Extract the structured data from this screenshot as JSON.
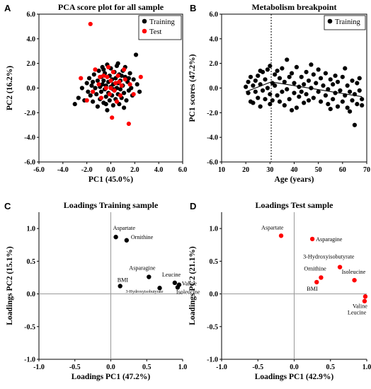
{
  "chart_data": [
    {
      "panel": "A",
      "type": "scatter",
      "title": "PCA score plot for all sample",
      "xlabel": "PC1 (45.0%)",
      "ylabel": "PC2 (16.2%)",
      "xlim": [
        -6.0,
        6.0
      ],
      "ylim": [
        -6.0,
        6.0
      ],
      "xticks": [
        "-6.0",
        "-4.0",
        "-2.0",
        "0.0",
        "2.0",
        "4.0",
        "6.0"
      ],
      "yticks": [
        "-6.0",
        "-4.0",
        "-2.0",
        "0.0",
        "2.0",
        "4.0",
        "6.0"
      ],
      "legend_position": "top-right",
      "series": [
        {
          "name": "Training",
          "color": "#000000",
          "points": [
            [
              -3.0,
              -1.3
            ],
            [
              -2.7,
              -0.8
            ],
            [
              -2.2,
              -1.0
            ],
            [
              -2.0,
              0.4
            ],
            [
              -1.9,
              -0.3
            ],
            [
              -1.8,
              0.8
            ],
            [
              -1.7,
              -0.6
            ],
            [
              -1.6,
              0.2
            ],
            [
              -1.5,
              -1.1
            ],
            [
              -1.4,
              1.1
            ],
            [
              -1.3,
              0.0
            ],
            [
              -1.2,
              -0.5
            ],
            [
              -1.1,
              0.6
            ],
            [
              -1.1,
              -1.5
            ],
            [
              -1.0,
              1.4
            ],
            [
              -0.9,
              0.1
            ],
            [
              -0.9,
              -0.9
            ],
            [
              -0.8,
              0.9
            ],
            [
              -0.8,
              -0.3
            ],
            [
              -0.7,
              1.7
            ],
            [
              -0.7,
              0.3
            ],
            [
              -0.6,
              -1.2
            ],
            [
              -0.6,
              0.6
            ],
            [
              -0.5,
              -0.1
            ],
            [
              -0.5,
              1.2
            ],
            [
              -0.4,
              -0.7
            ],
            [
              -0.4,
              0.2
            ],
            [
              -0.3,
              1.9
            ],
            [
              -0.3,
              -1.8
            ],
            [
              -0.2,
              0.5
            ],
            [
              -0.2,
              -0.4
            ],
            [
              -0.1,
              1.0
            ],
            [
              -0.1,
              -1.0
            ],
            [
              0.0,
              0.1
            ],
            [
              0.0,
              1.6
            ],
            [
              0.1,
              -0.6
            ],
            [
              0.1,
              0.7
            ],
            [
              0.2,
              -1.4
            ],
            [
              0.2,
              0.3
            ],
            [
              0.3,
              1.3
            ],
            [
              0.3,
              -0.2
            ],
            [
              0.4,
              0.8
            ],
            [
              0.4,
              -0.9
            ],
            [
              0.5,
              0.0
            ],
            [
              0.5,
              1.8
            ],
            [
              0.6,
              -0.5
            ],
            [
              0.6,
              0.4
            ],
            [
              0.7,
              -1.3
            ],
            [
              0.7,
              1.1
            ],
            [
              0.8,
              -0.1
            ],
            [
              0.8,
              0.6
            ],
            [
              0.9,
              -0.8
            ],
            [
              1.0,
              1.4
            ],
            [
              1.0,
              0.2
            ],
            [
              1.1,
              -0.4
            ],
            [
              1.2,
              0.9
            ],
            [
              1.3,
              -1.0
            ],
            [
              1.4,
              0.5
            ],
            [
              1.5,
              -0.2
            ],
            [
              1.6,
              1.2
            ],
            [
              1.7,
              0.0
            ],
            [
              1.8,
              -0.6
            ],
            [
              1.9,
              0.7
            ],
            [
              2.1,
              2.7
            ],
            [
              2.2,
              0.3
            ],
            [
              2.4,
              -0.3
            ],
            [
              1.2,
              1.7
            ],
            [
              -1.5,
              0.5
            ],
            [
              0.9,
              1.0
            ],
            [
              -0.4,
              -1.3
            ],
            [
              0.6,
              2.0
            ],
            [
              1.5,
              0.8
            ],
            [
              -2.4,
              0.0
            ],
            [
              0.2,
              -0.1
            ],
            [
              -0.6,
              1.5
            ],
            [
              1.1,
              -1.6
            ]
          ]
        },
        {
          "name": "Test",
          "color": "#ff0000",
          "points": [
            [
              -1.7,
              5.2
            ],
            [
              -2.5,
              0.8
            ],
            [
              -2.0,
              -1.0
            ],
            [
              -1.3,
              1.5
            ],
            [
              -1.0,
              0.3
            ],
            [
              -0.8,
              -0.8
            ],
            [
              -0.6,
              1.0
            ],
            [
              -0.4,
              0.0
            ],
            [
              -0.2,
              1.7
            ],
            [
              -0.1,
              -0.5
            ],
            [
              0.0,
              0.6
            ],
            [
              0.1,
              -2.4
            ],
            [
              0.2,
              1.3
            ],
            [
              0.3,
              -0.2
            ],
            [
              0.4,
              0.4
            ],
            [
              0.6,
              1.0
            ],
            [
              0.8,
              -0.6
            ],
            [
              0.9,
              0.2
            ],
            [
              1.2,
              0.7
            ],
            [
              1.5,
              -2.9
            ],
            [
              1.6,
              0.3
            ],
            [
              2.5,
              0.9
            ],
            [
              1.9,
              -0.5
            ],
            [
              -1.5,
              -0.3
            ],
            [
              -0.9,
              0.9
            ],
            [
              0.5,
              -1.1
            ],
            [
              1.1,
              1.5
            ],
            [
              -0.3,
              0.9
            ],
            [
              0.0,
              0.0
            ],
            [
              0.7,
              0.5
            ]
          ]
        }
      ]
    },
    {
      "panel": "B",
      "type": "scatter",
      "title": "Metabolism breakpoint",
      "xlabel": "Age (years)",
      "ylabel": "PC1 scores (47.2%)",
      "xlim": [
        10,
        70
      ],
      "ylim": [
        -6.0,
        6.0
      ],
      "xticks": [
        "10",
        "20",
        "30",
        "40",
        "50",
        "60",
        "70"
      ],
      "yticks": [
        "-6.0",
        "-4.0",
        "-2.0",
        "0.0",
        "2.0",
        "4.0",
        "6.0"
      ],
      "legend_position": "top-right",
      "breakpoint_x": 30.5,
      "trend_segments": [
        [
          20,
          -0.3,
          30.5,
          0.5
        ],
        [
          30.5,
          0.5,
          68,
          -0.7
        ]
      ],
      "series": [
        {
          "name": "Training",
          "color": "#000000",
          "points": [
            [
              20,
              0.1
            ],
            [
              21,
              -0.4
            ],
            [
              21,
              0.5
            ],
            [
              22,
              -1.1
            ],
            [
              22,
              0.9
            ],
            [
              23,
              0.2
            ],
            [
              23,
              -1.2
            ],
            [
              24,
              0.6
            ],
            [
              24,
              -0.3
            ],
            [
              25,
              1.0
            ],
            [
              25,
              -0.8
            ],
            [
              26,
              0.3
            ],
            [
              26,
              -1.5
            ],
            [
              27,
              1.3
            ],
            [
              27,
              -0.2
            ],
            [
              28,
              0.7
            ],
            [
              28,
              -0.9
            ],
            [
              29,
              0.0
            ],
            [
              29,
              1.5
            ],
            [
              30,
              -0.5
            ],
            [
              30,
              1.8
            ],
            [
              31,
              0.4
            ],
            [
              31,
              -1.0
            ],
            [
              32,
              1.1
            ],
            [
              32,
              0.2
            ],
            [
              33,
              -0.6
            ],
            [
              33,
              1.4
            ],
            [
              34,
              0.8
            ],
            [
              35,
              -0.3
            ],
            [
              35,
              1.6
            ],
            [
              36,
              0.5
            ],
            [
              36,
              -1.4
            ],
            [
              37,
              2.3
            ],
            [
              37,
              -0.1
            ],
            [
              38,
              0.9
            ],
            [
              38,
              -0.9
            ],
            [
              39,
              1.2
            ],
            [
              40,
              -0.4
            ],
            [
              40,
              0.4
            ],
            [
              41,
              -1.6
            ],
            [
              41,
              1.7
            ],
            [
              42,
              0.1
            ],
            [
              42,
              -0.7
            ],
            [
              43,
              0.9
            ],
            [
              44,
              -1.2
            ],
            [
              44,
              0.3
            ],
            [
              45,
              1.3
            ],
            [
              45,
              -0.5
            ],
            [
              46,
              0.6
            ],
            [
              46,
              -1.0
            ],
            [
              47,
              0.0
            ],
            [
              48,
              1.1
            ],
            [
              48,
              -0.8
            ],
            [
              49,
              0.4
            ],
            [
              50,
              -0.3
            ],
            [
              50,
              1.5
            ],
            [
              51,
              -1.1
            ],
            [
              51,
              0.8
            ],
            [
              52,
              0.2
            ],
            [
              53,
              -0.6
            ],
            [
              53,
              1.2
            ],
            [
              54,
              -0.1
            ],
            [
              54,
              -1.3
            ],
            [
              55,
              0.7
            ],
            [
              56,
              -0.9
            ],
            [
              56,
              0.3
            ],
            [
              57,
              1.0
            ],
            [
              57,
              -0.4
            ],
            [
              58,
              -1.5
            ],
            [
              58,
              0.5
            ],
            [
              59,
              -0.2
            ],
            [
              60,
              0.9
            ],
            [
              60,
              -1.1
            ],
            [
              61,
              1.6
            ],
            [
              61,
              -0.6
            ],
            [
              62,
              0.2
            ],
            [
              62,
              -1.6
            ],
            [
              63,
              -0.3
            ],
            [
              64,
              0.6
            ],
            [
              64,
              -1.0
            ],
            [
              65,
              -3.0
            ],
            [
              65,
              -0.5
            ],
            [
              66,
              0.4
            ],
            [
              66,
              -1.3
            ],
            [
              67,
              -0.2
            ],
            [
              67,
              0.8
            ],
            [
              68,
              -0.9
            ],
            [
              68,
              -1.4
            ],
            [
              34,
              -1.1
            ],
            [
              26,
              1.4
            ],
            [
              47,
              1.9
            ],
            [
              55,
              -1.7
            ],
            [
              30,
              -1.3
            ],
            [
              43,
              -0.3
            ],
            [
              63,
              -1.9
            ],
            [
              39,
              -1.8
            ]
          ]
        }
      ]
    },
    {
      "panel": "C",
      "type": "scatter",
      "title": "Loadings Training sample",
      "xlabel": "Loadings PC1 (47.2%)",
      "ylabel": "Loadings PC2 (15.1%)",
      "xlim": [
        -1.0,
        1.0
      ],
      "ylim": [
        -1.0,
        1.25
      ],
      "xticks": [
        "-1.0",
        "-0.5",
        "0.0",
        "0.5",
        "1.0"
      ],
      "yticks": [
        "-1.0",
        "-0.5",
        "0.0",
        "0.5",
        "1.0"
      ],
      "series": [
        {
          "name": "",
          "color": "#000000",
          "points": [
            {
              "label": "Aspartate",
              "x": 0.07,
              "y": 0.87
            },
            {
              "label": "Ornithine",
              "x": 0.22,
              "y": 0.82
            },
            {
              "label": "Asparagine",
              "x": 0.53,
              "y": 0.26
            },
            {
              "label": "BMI",
              "x": 0.13,
              "y": 0.12
            },
            {
              "label": "3-Hydroxyisobutyrate",
              "x": 0.68,
              "y": 0.09
            },
            {
              "label": "Leucine",
              "x": 0.89,
              "y": 0.17
            },
            {
              "label": "Valine",
              "x": 0.95,
              "y": 0.14
            },
            {
              "label": "Isoleucine",
              "x": 0.93,
              "y": 0.1
            }
          ]
        }
      ]
    },
    {
      "panel": "D",
      "type": "scatter",
      "title": "Loadings Test sample",
      "xlabel": "Loadings PC1 (42.9%)",
      "ylabel": "Loadings PC2 (21.1%)",
      "xlim": [
        -1.0,
        1.0
      ],
      "ylim": [
        -1.0,
        1.25
      ],
      "xticks": [
        "-1.0",
        "-0.5",
        "0.0",
        "0.5",
        "1.0"
      ],
      "yticks": [
        "-1.0",
        "-0.5",
        "0.0",
        "0.5",
        "1.0"
      ],
      "series": [
        {
          "name": "",
          "color": "#ff0000",
          "points": [
            {
              "label": "Aspartate",
              "x": -0.18,
              "y": 0.89
            },
            {
              "label": "Asparagine",
              "x": 0.25,
              "y": 0.84
            },
            {
              "label": "3-Hydroxyisobutyrate",
              "x": 0.63,
              "y": 0.41
            },
            {
              "label": "Ornithine",
              "x": 0.37,
              "y": 0.25
            },
            {
              "label": "Isoleucine",
              "x": 0.83,
              "y": 0.21
            },
            {
              "label": "BMI",
              "x": 0.31,
              "y": 0.18
            },
            {
              "label": "Valine",
              "x": 0.98,
              "y": -0.04
            },
            {
              "label": "Leucine",
              "x": 0.97,
              "y": -0.11
            }
          ]
        }
      ]
    }
  ]
}
